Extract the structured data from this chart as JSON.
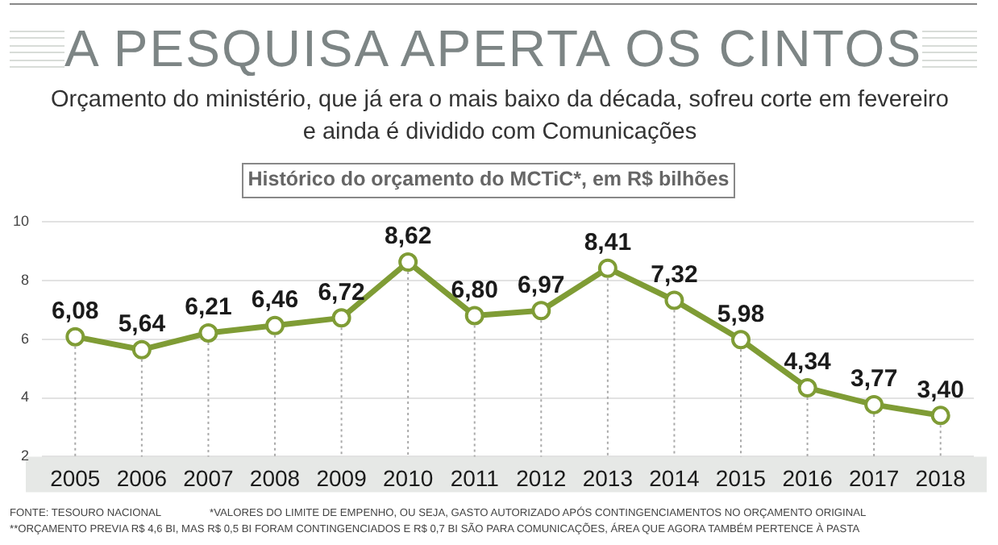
{
  "chart_data": {
    "type": "line",
    "title": "A PESQUISA APERTA OS CINTOS",
    "subtitle": "Orçamento do ministério, que já era o mais baixo da década, sofreu corte em fevereiro e ainda é dividido com Comunicações",
    "legend_title": null,
    "ylabel": "Histórico do orçamento do MCTiC*, em R$ bilhões",
    "categories": [
      "2005",
      "2006",
      "2007",
      "2008",
      "2009",
      "2010",
      "2011",
      "2012",
      "2013",
      "2014",
      "2015",
      "2016",
      "2017",
      "2018"
    ],
    "series": [
      {
        "color": "#7f9c35",
        "values": [
          6.08,
          5.64,
          6.21,
          6.46,
          6.72,
          8.62,
          6.8,
          6.97,
          8.41,
          7.32,
          5.98,
          4.34,
          3.77,
          3.4
        ],
        "value_labels": [
          "6,08",
          "5,64",
          "6,21",
          "6,46",
          "6,72",
          "8,62",
          "6,80",
          "6,97",
          "8,41",
          "7,32",
          "5,98",
          "4,34",
          "3,77",
          "3,40"
        ]
      }
    ],
    "ylim": [
      2,
      10
    ],
    "yticks": [
      2,
      4,
      6,
      8,
      10
    ],
    "grid": true,
    "legend": false,
    "marker": "circle",
    "line_style": "solid",
    "annotations": [
      "FONTE: TESOURO NACIONAL",
      "*VALORES DO LIMITE DE EMPENHO, OU SEJA, GASTO AUTORIZADO APÓS CONTINGENCIAMENTOS NO ORÇAMENTO ORIGINAL",
      "**ORÇAMENTO PREVIA R$ 4,6 BI, MAS R$ 0,5 BI FORAM CONTINGENCIADOS E R$ 0,7 BI SÃO PARA COMUNICAÇÕES, ÁREA QUE AGORA TAMBÉM PERTENCE À PASTA"
    ]
  }
}
